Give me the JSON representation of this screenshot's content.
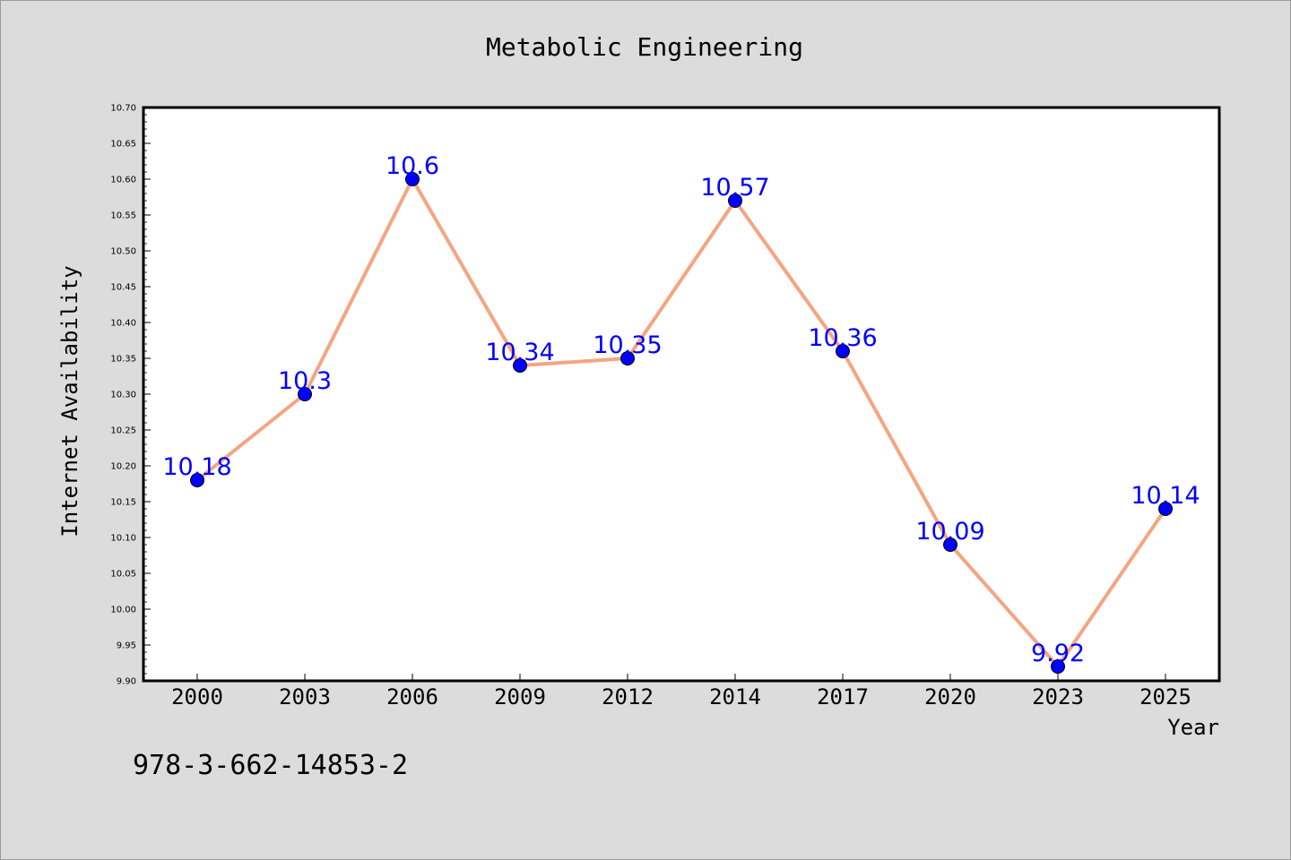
{
  "chart_data": {
    "type": "line",
    "title": "Metabolic Engineering",
    "xlabel": "Year",
    "ylabel": "Internet Availability",
    "categories": [
      "2000",
      "2003",
      "2006",
      "2009",
      "2012",
      "2014",
      "2017",
      "2020",
      "2023",
      "2025"
    ],
    "series": [
      {
        "values": [
          10.18,
          10.3,
          10.6,
          10.34,
          10.35,
          10.57,
          10.36,
          10.09,
          9.92,
          10.14
        ],
        "data_labels": [
          "10.18",
          "10.3",
          "10.6",
          "10.34",
          "10.35",
          "10.57",
          "10.36",
          "10.09",
          "9.92",
          "10.14"
        ],
        "line_color": "#f4a582",
        "marker_color": "#0000ff",
        "label_color": "#0000ff"
      }
    ],
    "ylim": [
      9.9,
      10.7
    ],
    "yticks": [
      "9.90",
      "9.95",
      "10.00",
      "10.05",
      "10.10",
      "10.15",
      "10.20",
      "10.25",
      "10.30",
      "10.35",
      "10.40",
      "10.45",
      "10.50",
      "10.55",
      "10.60",
      "10.65",
      "10.70"
    ],
    "grid": false,
    "legend": "none"
  },
  "footer": {
    "isbn": "978-3-662-14853-2"
  },
  "colors": {
    "figure_background": "#dcdcdc",
    "plot_background": "#ffffff",
    "axes": "#000000"
  }
}
